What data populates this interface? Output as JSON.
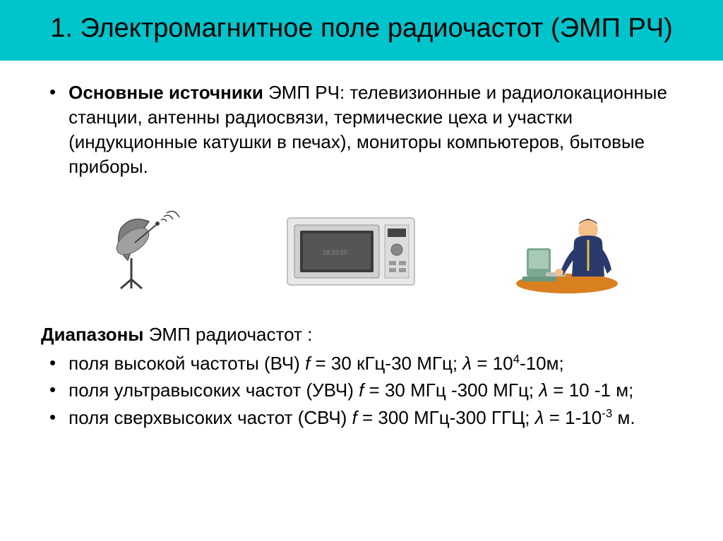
{
  "header": {
    "title": "1. Электромагнитное поле радиочастот (ЭМП РЧ)",
    "bg_color": "#00c4cc",
    "text_color": "#000000",
    "font_size": 38
  },
  "intro": {
    "prefix_bold": "Основные источники",
    "rest": " ЭМП РЧ: телевизионные и радиолокационные станции, антенны радиосвязи, термические цеха и участки (индукционные катушки в печах), мониторы компьютеров, бытовые приборы."
  },
  "images": {
    "satellite_dish": "satellite-dish-icon",
    "microwave": "microwave-icon",
    "person_computer": "person-at-computer-icon"
  },
  "ranges": {
    "title_bold": "Диапазоны",
    "title_rest": " ЭМП радиочастот :",
    "items": [
      {
        "text_html": "поля высокой частоты (ВЧ) <span class='ital'>f</span> = 30 кГц-30 МГц; <span class='ital'>λ</span> = 10<sup>4</sup>-10м;"
      },
      {
        "text_html": "поля ультравысоких частот (УВЧ) <span class='ital'>f</span> = 30 МГц -300 МГц; <span class='ital'>λ</span> = 10 -1 м;"
      },
      {
        "text_html": "поля сверхвысоких частот (СВЧ) <span class='ital'>f</span> = 300 МГц-300 ГГЦ; <span class='ital'>λ</span> = 1-10<sup>-3</sup> м."
      }
    ]
  },
  "colors": {
    "page_bg": "#ffffff",
    "text": "#000000",
    "dish_gray": "#808080",
    "microwave_body": "#e8e8e8",
    "microwave_dark": "#555555",
    "person_skin": "#f4c08a",
    "person_suit": "#2a3a6a",
    "desk": "#d88020",
    "monitor": "#7aa890"
  }
}
